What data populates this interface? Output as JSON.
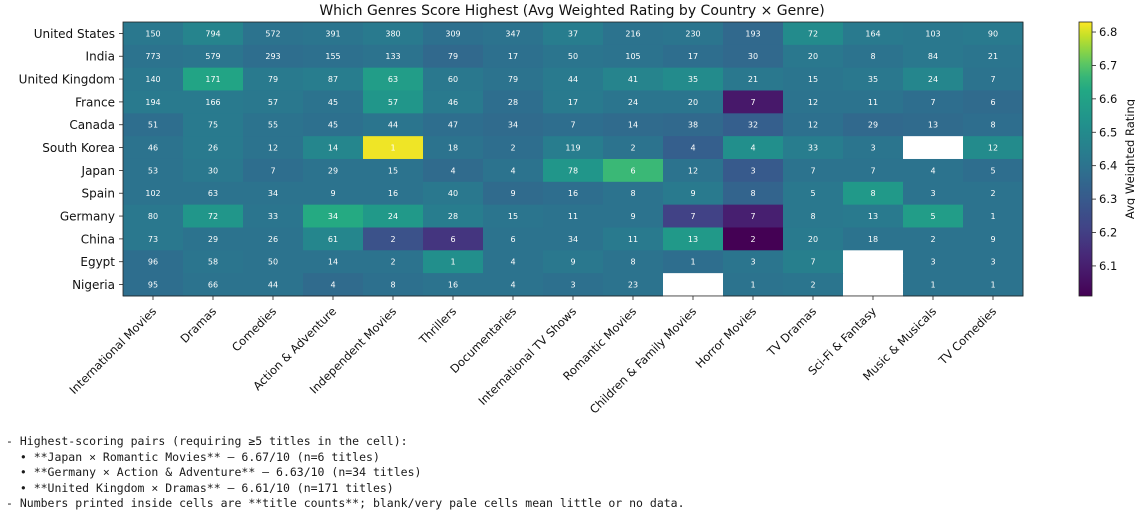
{
  "chart_data": {
    "type": "heatmap",
    "title": "Which Genres Score Highest (Avg Weighted Rating by Country × Genre)",
    "rows": [
      "United States",
      "India",
      "United Kingdom",
      "France",
      "Canada",
      "South Korea",
      "Japan",
      "Spain",
      "Germany",
      "China",
      "Egypt",
      "Nigeria"
    ],
    "columns": [
      "International Movies",
      "Dramas",
      "Comedies",
      "Action & Adventure",
      "Independent Movies",
      "Thrillers",
      "Documentaries",
      "International TV Shows",
      "Romantic Movies",
      "Children & Family Movies",
      "Horror Movies",
      "TV Dramas",
      "Sci-Fi & Fantasy",
      "Music & Musicals",
      "TV Comedies"
    ],
    "counts": [
      [
        150,
        794,
        572,
        391,
        380,
        309,
        347,
        37,
        216,
        230,
        193,
        72,
        164,
        103,
        90
      ],
      [
        773,
        579,
        293,
        155,
        133,
        79,
        17,
        50,
        105,
        17,
        30,
        20,
        8,
        84,
        21
      ],
      [
        140,
        171,
        79,
        87,
        63,
        60,
        79,
        44,
        41,
        35,
        21,
        15,
        35,
        24,
        7
      ],
      [
        194,
        166,
        57,
        45,
        57,
        46,
        28,
        17,
        24,
        20,
        7,
        12,
        11,
        7,
        6
      ],
      [
        51,
        75,
        55,
        45,
        44,
        47,
        34,
        7,
        14,
        38,
        32,
        12,
        29,
        13,
        8
      ],
      [
        46,
        26,
        12,
        14,
        1,
        18,
        2,
        119,
        2,
        4,
        4,
        33,
        3,
        null,
        12
      ],
      [
        53,
        30,
        7,
        29,
        15,
        4,
        4,
        78,
        6,
        12,
        3,
        7,
        7,
        4,
        5
      ],
      [
        102,
        63,
        34,
        9,
        16,
        40,
        9,
        16,
        8,
        9,
        8,
        5,
        8,
        3,
        2
      ],
      [
        80,
        72,
        33,
        34,
        24,
        28,
        15,
        11,
        9,
        7,
        7,
        8,
        13,
        5,
        1
      ],
      [
        73,
        29,
        26,
        61,
        2,
        6,
        6,
        34,
        11,
        13,
        2,
        20,
        18,
        2,
        9
      ],
      [
        96,
        58,
        50,
        14,
        2,
        1,
        4,
        9,
        8,
        1,
        3,
        7,
        null,
        3,
        3
      ],
      [
        95,
        66,
        44,
        4,
        8,
        16,
        4,
        3,
        23,
        null,
        1,
        2,
        null,
        1,
        1
      ]
    ],
    "ratings": [
      [
        6.42,
        6.47,
        6.4,
        6.41,
        6.43,
        6.39,
        6.4,
        6.44,
        6.4,
        6.41,
        6.36,
        6.5,
        6.43,
        6.42,
        6.43
      ],
      [
        6.4,
        6.41,
        6.38,
        6.39,
        6.4,
        6.36,
        6.39,
        6.41,
        6.4,
        6.38,
        6.36,
        6.42,
        6.4,
        6.42,
        6.41
      ],
      [
        6.42,
        6.61,
        6.43,
        6.44,
        6.58,
        6.42,
        6.4,
        6.43,
        6.47,
        6.5,
        6.42,
        6.41,
        6.42,
        6.48,
        6.4
      ],
      [
        6.43,
        6.43,
        6.42,
        6.4,
        6.55,
        6.43,
        6.38,
        6.43,
        6.41,
        6.41,
        6.08,
        6.4,
        6.4,
        6.38,
        6.37
      ],
      [
        6.38,
        6.43,
        6.4,
        6.39,
        6.41,
        6.38,
        6.37,
        6.38,
        6.37,
        6.36,
        6.32,
        6.39,
        6.36,
        6.37,
        6.38
      ],
      [
        6.4,
        6.43,
        6.4,
        6.48,
        6.82,
        6.4,
        6.38,
        6.44,
        6.4,
        6.32,
        6.52,
        6.44,
        6.41,
        null,
        6.5
      ],
      [
        6.4,
        6.42,
        6.38,
        6.4,
        6.4,
        6.37,
        6.4,
        6.55,
        6.67,
        6.4,
        6.3,
        6.4,
        6.4,
        6.4,
        6.38
      ],
      [
        6.4,
        6.4,
        6.4,
        6.4,
        6.4,
        6.42,
        6.37,
        6.38,
        6.4,
        6.43,
        6.34,
        6.42,
        6.56,
        6.4,
        6.4
      ],
      [
        6.42,
        6.55,
        6.41,
        6.63,
        6.56,
        6.44,
        6.41,
        6.4,
        6.4,
        6.21,
        6.1,
        6.42,
        6.43,
        6.58,
        6.4
      ],
      [
        6.42,
        6.4,
        6.4,
        6.48,
        6.27,
        6.17,
        6.4,
        6.4,
        6.43,
        6.56,
        6.01,
        6.43,
        6.4,
        6.4,
        6.4
      ],
      [
        6.38,
        6.41,
        6.4,
        6.4,
        6.4,
        6.52,
        6.4,
        6.42,
        6.4,
        6.38,
        6.41,
        6.45,
        null,
        6.4,
        6.4
      ],
      [
        6.38,
        6.4,
        6.4,
        6.37,
        6.39,
        6.4,
        6.4,
        6.39,
        6.4,
        null,
        6.4,
        6.41,
        null,
        6.4,
        6.4
      ]
    ],
    "colorbar": {
      "label": "Avg Weighted Rating",
      "ticks": [
        "6.1",
        "6.2",
        "6.3",
        "6.4",
        "6.5",
        "6.6",
        "6.7",
        "6.8"
      ],
      "range": [
        6.01,
        6.83
      ],
      "colormap": "viridis"
    }
  },
  "notes": [
    "- Highest-scoring pairs (requiring ≥5 titles in the cell):",
    "  • **Japan × Romantic Movies** — 6.67/10 (n=6 titles)",
    "  • **Germany × Action & Adventure** — 6.63/10 (n=34 titles)",
    "  • **United Kingdom × Dramas** — 6.61/10 (n=171 titles)",
    "- Numbers printed inside cells are **title counts**; blank/very pale cells mean little or no data."
  ]
}
